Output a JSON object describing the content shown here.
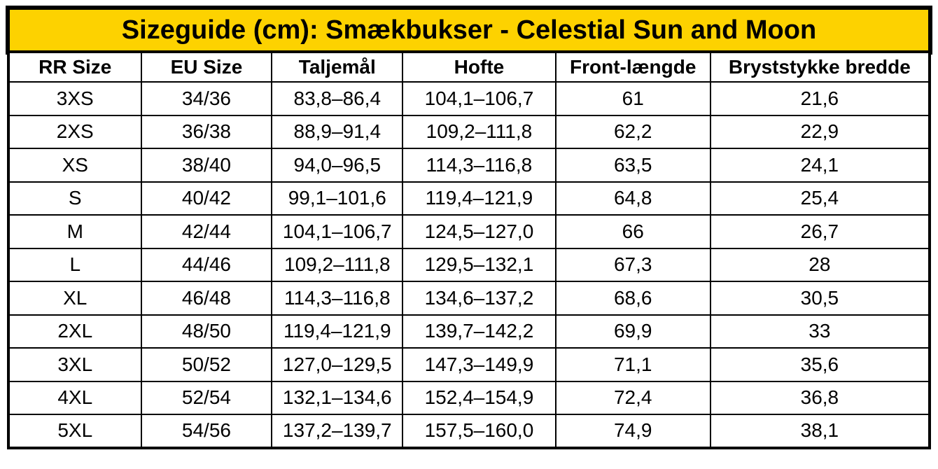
{
  "title": "Sizeguide (cm): Smækbukser - Celestial Sun and Moon",
  "colors": {
    "title_bg": "#FDD200",
    "border": "#000000",
    "cell_bg": "#FFFFFF",
    "text": "#000000"
  },
  "table": {
    "headers": [
      "RR Size",
      "EU Size",
      "Taljemål",
      "Hofte",
      "Front-længde",
      "Bryststykke bredde"
    ],
    "rows": [
      {
        "rr": "3XS",
        "eu": "34/36",
        "talje": "83,8–86,4",
        "hofte": "104,1–106,7",
        "front": "61",
        "bryst": "21,6"
      },
      {
        "rr": "2XS",
        "eu": "36/38",
        "talje": "88,9–91,4",
        "hofte": "109,2–111,8",
        "front": "62,2",
        "bryst": "22,9"
      },
      {
        "rr": "XS",
        "eu": "38/40",
        "talje": "94,0–96,5",
        "hofte": "114,3–116,8",
        "front": "63,5",
        "bryst": "24,1"
      },
      {
        "rr": "S",
        "eu": "40/42",
        "talje": "99,1–101,6",
        "hofte": "119,4–121,9",
        "front": "64,8",
        "bryst": "25,4"
      },
      {
        "rr": "M",
        "eu": "42/44",
        "talje": "104,1–106,7",
        "hofte": "124,5–127,0",
        "front": "66",
        "bryst": "26,7"
      },
      {
        "rr": "L",
        "eu": "44/46",
        "talje": "109,2–111,8",
        "hofte": "129,5–132,1",
        "front": "67,3",
        "bryst": "28"
      },
      {
        "rr": "XL",
        "eu": "46/48",
        "talje": "114,3–116,8",
        "hofte": "134,6–137,2",
        "front": "68,6",
        "bryst": "30,5"
      },
      {
        "rr": "2XL",
        "eu": "48/50",
        "talje": "119,4–121,9",
        "hofte": "139,7–142,2",
        "front": "69,9",
        "bryst": "33"
      },
      {
        "rr": "3XL",
        "eu": "50/52",
        "talje": "127,0–129,5",
        "hofte": "147,3–149,9",
        "front": "71,1",
        "bryst": "35,6"
      },
      {
        "rr": "4XL",
        "eu": "52/54",
        "talje": "132,1–134,6",
        "hofte": "152,4–154,9",
        "front": "72,4",
        "bryst": "36,8"
      },
      {
        "rr": "5XL",
        "eu": "54/56",
        "talje": "137,2–139,7",
        "hofte": "157,5–160,0",
        "front": "74,9",
        "bryst": "38,1"
      }
    ]
  }
}
